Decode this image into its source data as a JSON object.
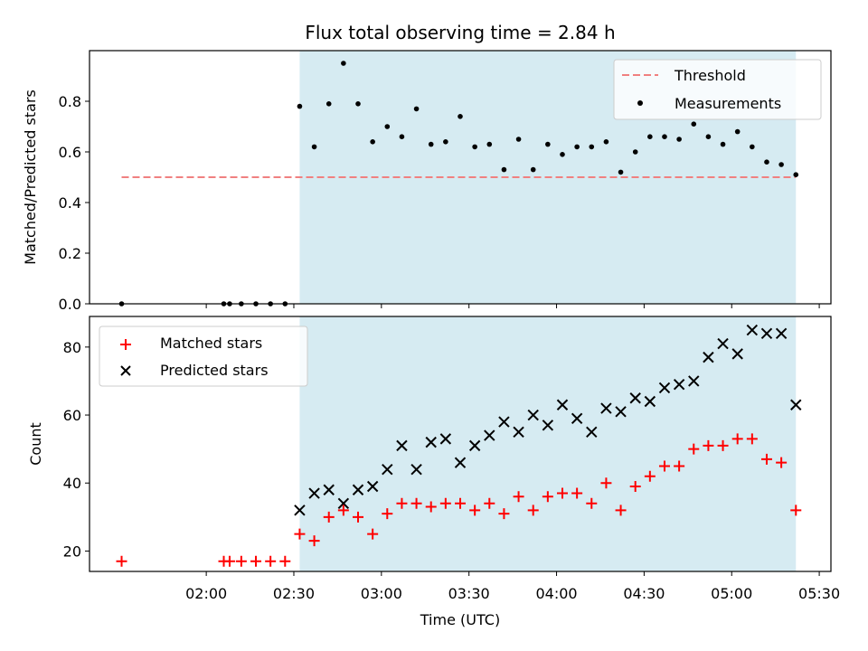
{
  "chart_data": [
    {
      "type": "scatter",
      "title": "Flux total observing time = 2.84 h",
      "xlabel": "",
      "ylabel": "Matched/Predicted stars",
      "ylim": [
        0,
        1.0
      ],
      "yticks": [
        "0.0",
        "0.2",
        "0.4",
        "0.6",
        "0.8"
      ],
      "xlim": [
        "01:20",
        "05:34"
      ],
      "xticks": [
        "02:00",
        "02:30",
        "03:00",
        "03:30",
        "04:00",
        "04:30",
        "05:00",
        "05:30"
      ],
      "shaded_span": [
        "02:32",
        "05:22"
      ],
      "legend_position": "top-right",
      "threshold": {
        "name": "Threshold",
        "y": 0.5,
        "x_range": [
          "01:31",
          "05:22"
        ],
        "color": "#f08080"
      },
      "series": [
        {
          "name": "Measurements",
          "color": "#000000",
          "points": [
            [
              "01:31",
              0.0
            ],
            [
              "02:06",
              0.0
            ],
            [
              "02:08",
              0.0
            ],
            [
              "02:12",
              0.0
            ],
            [
              "02:17",
              0.0
            ],
            [
              "02:22",
              0.0
            ],
            [
              "02:27",
              0.0
            ],
            [
              "02:32",
              0.78
            ],
            [
              "02:37",
              0.62
            ],
            [
              "02:42",
              0.79
            ],
            [
              "02:47",
              0.95
            ],
            [
              "02:52",
              0.79
            ],
            [
              "02:57",
              0.64
            ],
            [
              "03:02",
              0.7
            ],
            [
              "03:07",
              0.66
            ],
            [
              "03:12",
              0.77
            ],
            [
              "03:17",
              0.63
            ],
            [
              "03:22",
              0.64
            ],
            [
              "03:27",
              0.74
            ],
            [
              "03:32",
              0.62
            ],
            [
              "03:37",
              0.63
            ],
            [
              "03:42",
              0.53
            ],
            [
              "03:47",
              0.65
            ],
            [
              "03:52",
              0.53
            ],
            [
              "03:57",
              0.63
            ],
            [
              "04:02",
              0.59
            ],
            [
              "04:07",
              0.62
            ],
            [
              "04:12",
              0.62
            ],
            [
              "04:17",
              0.64
            ],
            [
              "04:22",
              0.52
            ],
            [
              "04:27",
              0.6
            ],
            [
              "04:32",
              0.66
            ],
            [
              "04:37",
              0.66
            ],
            [
              "04:42",
              0.65
            ],
            [
              "04:47",
              0.71
            ],
            [
              "04:52",
              0.66
            ],
            [
              "04:57",
              0.63
            ],
            [
              "05:02",
              0.68
            ],
            [
              "05:07",
              0.62
            ],
            [
              "05:12",
              0.56
            ],
            [
              "05:17",
              0.55
            ],
            [
              "05:22",
              0.51
            ]
          ]
        }
      ]
    },
    {
      "type": "scatter",
      "title": "",
      "xlabel": "Time (UTC)",
      "ylabel": "Count",
      "ylim": [
        14,
        89
      ],
      "yticks": [
        "20",
        "40",
        "60",
        "80"
      ],
      "xlim": [
        "01:20",
        "05:34"
      ],
      "xticks": [
        "02:00",
        "02:30",
        "03:00",
        "03:30",
        "04:00",
        "04:30",
        "05:00",
        "05:30"
      ],
      "shaded_span": [
        "02:32",
        "05:22"
      ],
      "legend_position": "top-left",
      "series": [
        {
          "name": "Matched stars",
          "color": "#ff0000",
          "marker": "plus",
          "points": [
            [
              "01:31",
              17
            ],
            [
              "02:06",
              17
            ],
            [
              "02:08",
              17
            ],
            [
              "02:12",
              17
            ],
            [
              "02:17",
              17
            ],
            [
              "02:22",
              17
            ],
            [
              "02:27",
              17
            ],
            [
              "02:32",
              25
            ],
            [
              "02:37",
              23
            ],
            [
              "02:42",
              30
            ],
            [
              "02:47",
              32
            ],
            [
              "02:52",
              30
            ],
            [
              "02:57",
              25
            ],
            [
              "03:02",
              31
            ],
            [
              "03:07",
              34
            ],
            [
              "03:12",
              34
            ],
            [
              "03:17",
              33
            ],
            [
              "03:22",
              34
            ],
            [
              "03:27",
              34
            ],
            [
              "03:32",
              32
            ],
            [
              "03:37",
              34
            ],
            [
              "03:42",
              31
            ],
            [
              "03:47",
              36
            ],
            [
              "03:52",
              32
            ],
            [
              "03:57",
              36
            ],
            [
              "04:02",
              37
            ],
            [
              "04:07",
              37
            ],
            [
              "04:12",
              34
            ],
            [
              "04:17",
              40
            ],
            [
              "04:22",
              32
            ],
            [
              "04:27",
              39
            ],
            [
              "04:32",
              42
            ],
            [
              "04:37",
              45
            ],
            [
              "04:42",
              45
            ],
            [
              "04:47",
              50
            ],
            [
              "04:52",
              51
            ],
            [
              "04:57",
              51
            ],
            [
              "05:02",
              53
            ],
            [
              "05:07",
              53
            ],
            [
              "05:12",
              47
            ],
            [
              "05:17",
              46
            ],
            [
              "05:22",
              32
            ]
          ]
        },
        {
          "name": "Predicted stars",
          "color": "#000000",
          "marker": "x",
          "points": [
            [
              "02:32",
              32
            ],
            [
              "02:37",
              37
            ],
            [
              "02:42",
              38
            ],
            [
              "02:47",
              34
            ],
            [
              "02:52",
              38
            ],
            [
              "02:57",
              39
            ],
            [
              "03:02",
              44
            ],
            [
              "03:07",
              51
            ],
            [
              "03:12",
              44
            ],
            [
              "03:17",
              52
            ],
            [
              "03:22",
              53
            ],
            [
              "03:27",
              46
            ],
            [
              "03:32",
              51
            ],
            [
              "03:37",
              54
            ],
            [
              "03:42",
              58
            ],
            [
              "03:47",
              55
            ],
            [
              "03:52",
              60
            ],
            [
              "03:57",
              57
            ],
            [
              "04:02",
              63
            ],
            [
              "04:07",
              59
            ],
            [
              "04:12",
              55
            ],
            [
              "04:17",
              62
            ],
            [
              "04:22",
              61
            ],
            [
              "04:27",
              65
            ],
            [
              "04:32",
              64
            ],
            [
              "04:37",
              68
            ],
            [
              "04:42",
              69
            ],
            [
              "04:47",
              70
            ],
            [
              "04:52",
              77
            ],
            [
              "04:57",
              81
            ],
            [
              "05:02",
              78
            ],
            [
              "05:07",
              85
            ],
            [
              "05:12",
              84
            ],
            [
              "05:17",
              84
            ],
            [
              "05:22",
              63
            ]
          ]
        }
      ]
    }
  ],
  "colors": {
    "shade": "#add8e6",
    "threshold": "#f08080",
    "matched": "#ff0000",
    "predicted": "#000000",
    "measurement": "#000000"
  }
}
